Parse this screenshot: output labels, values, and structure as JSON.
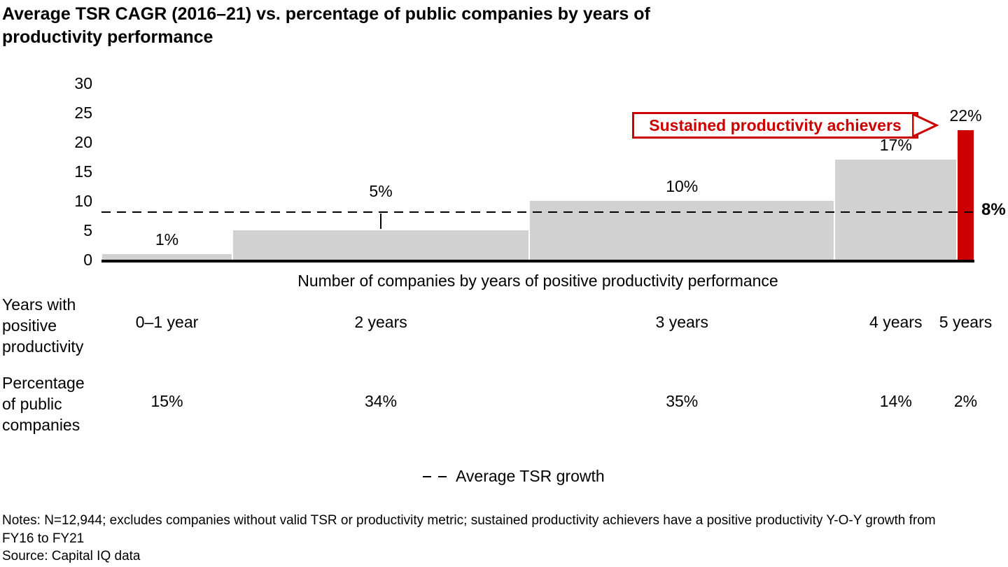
{
  "title": "Average TSR CAGR (2016–21) vs. percentage of public companies by years of\nproductivity performance",
  "chart_data": {
    "type": "bar",
    "subtype": "variable-width-bar",
    "title": "Average TSR CAGR (2016–21) vs. percentage of public companies by years of productivity performance",
    "categories": [
      "0–1 year",
      "2 years",
      "3 years",
      "4 years",
      "5 years"
    ],
    "values": [
      1,
      5,
      10,
      17,
      22
    ],
    "bar_value_labels": [
      "1%",
      "5%",
      "10%",
      "17%",
      "22%"
    ],
    "widths_pct": [
      15,
      34,
      35,
      14,
      2
    ],
    "width_labels": [
      "15%",
      "34%",
      "35%",
      "14%",
      "2%"
    ],
    "y_ticks": [
      30,
      25,
      20,
      15,
      10,
      5,
      0
    ],
    "ylim": [
      0,
      30
    ],
    "xlabel": "Number of companies by years of positive productivity performance",
    "reference_line": {
      "value": 8,
      "label": "8%",
      "name": "Average TSR growth",
      "style": "dashed"
    },
    "highlight": {
      "index": 4,
      "label": "Sustained productivity achievers"
    },
    "colors": {
      "bar": "#d1d1d1",
      "highlight": "#cc0000",
      "axis": "#000000"
    },
    "grid": false,
    "legend_position": "bottom-center"
  },
  "rows": {
    "years_label": "Years with\npositive\nproductivity",
    "pct_label": "Percentage\nof public\ncompanies"
  },
  "legend": {
    "label": "Average TSR growth"
  },
  "footer": {
    "notes_line1": "Notes: N=12,944; excludes companies without valid TSR or productivity metric; sustained productivity achievers have a positive productivity Y-O-Y growth from",
    "notes_line2": "FY16 to FY21",
    "source": "Source: Capital IQ data"
  }
}
